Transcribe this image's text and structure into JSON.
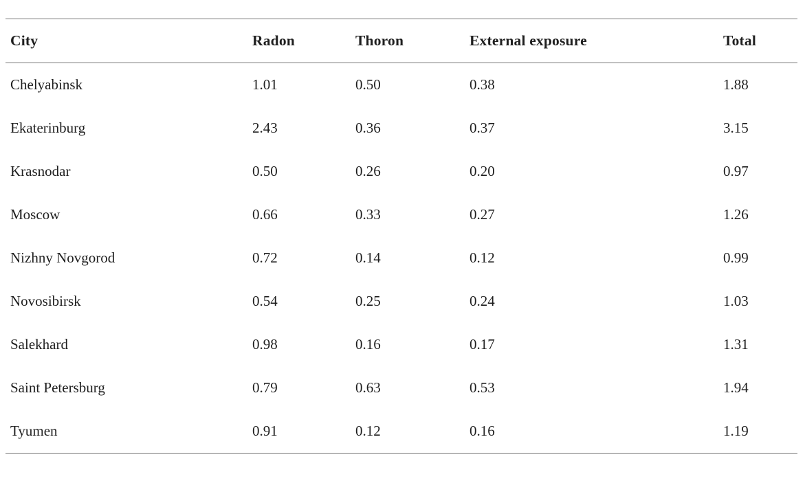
{
  "table": {
    "columns": [
      "City",
      "Radon",
      "Thoron",
      "External exposure",
      "Total"
    ],
    "rows": [
      [
        "Chelyabinsk",
        "1.01",
        "0.50",
        "0.38",
        "1.88"
      ],
      [
        "Ekaterinburg",
        "2.43",
        "0.36",
        "0.37",
        "3.15"
      ],
      [
        "Krasnodar",
        "0.50",
        "0.26",
        "0.20",
        "0.97"
      ],
      [
        "Moscow",
        "0.66",
        "0.33",
        "0.27",
        "1.26"
      ],
      [
        "Nizhny Novgorod",
        "0.72",
        "0.14",
        "0.12",
        "0.99"
      ],
      [
        "Novosibirsk",
        "0.54",
        "0.25",
        "0.24",
        "1.03"
      ],
      [
        "Salekhard",
        "0.98",
        "0.16",
        "0.17",
        "1.31"
      ],
      [
        "Saint Petersburg",
        "0.79",
        "0.63",
        "0.53",
        "1.94"
      ],
      [
        "Tyumen",
        "0.91",
        "0.12",
        "0.16",
        "1.19"
      ]
    ]
  },
  "chart_data": {
    "type": "table",
    "columns": [
      "City",
      "Radon",
      "Thoron",
      "External exposure",
      "Total"
    ],
    "rows": [
      [
        "Chelyabinsk",
        1.01,
        0.5,
        0.38,
        1.88
      ],
      [
        "Ekaterinburg",
        2.43,
        0.36,
        0.37,
        3.15
      ],
      [
        "Krasnodar",
        0.5,
        0.26,
        0.2,
        0.97
      ],
      [
        "Moscow",
        0.66,
        0.33,
        0.27,
        1.26
      ],
      [
        "Nizhny Novgorod",
        0.72,
        0.14,
        0.12,
        0.99
      ],
      [
        "Novosibirsk",
        0.54,
        0.25,
        0.24,
        1.03
      ],
      [
        "Salekhard",
        0.98,
        0.16,
        0.17,
        1.31
      ],
      [
        "Saint Petersburg",
        0.79,
        0.63,
        0.53,
        1.94
      ],
      [
        "Tyumen",
        0.91,
        0.12,
        0.16,
        1.19
      ]
    ]
  },
  "colors": {
    "text": "#1f1f1f",
    "rule": "#757575",
    "divider_bar": "#969696",
    "dashed_line": "#e7e3e3",
    "background": "#ffffff"
  }
}
